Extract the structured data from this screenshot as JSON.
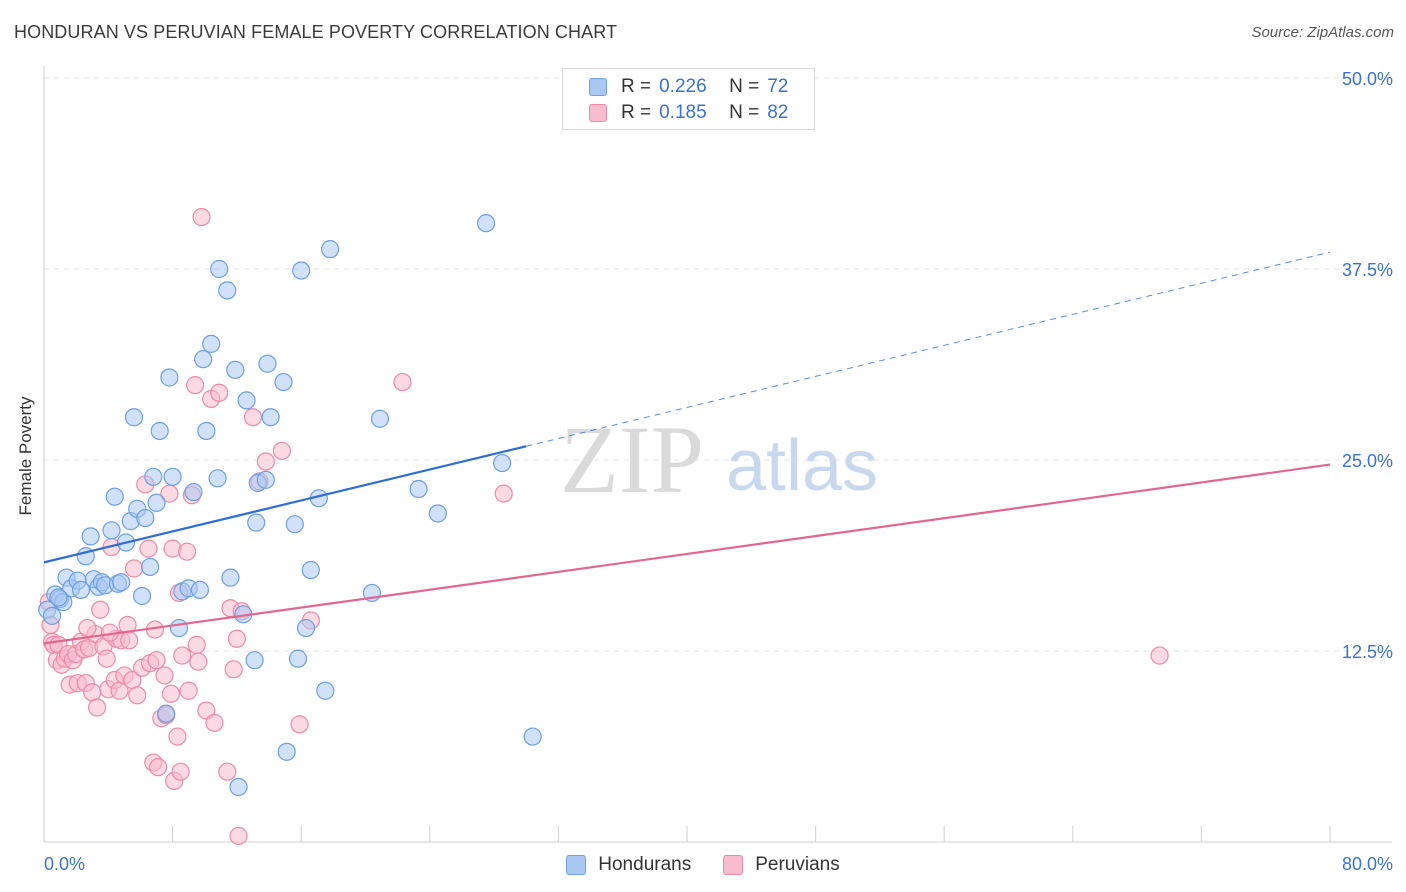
{
  "title": "HONDURAN VS PERUVIAN FEMALE POVERTY CORRELATION CHART",
  "source": "Source: ZipAtlas.com",
  "watermark": {
    "zip": "ZIP",
    "atlas": "atlas"
  },
  "colors": {
    "blue_fill": "#a9c9f2",
    "blue_stroke": "#6d9fe0",
    "blue_line": "#2f6fd1",
    "pink_fill": "#f7bccd",
    "pink_stroke": "#ec8aa8",
    "pink_line": "#e2678f",
    "tick_text": "#3a73c9",
    "grid": "#e2e2e2"
  },
  "legend": {
    "rows": [
      {
        "series": "Hondurans",
        "r_label": "R =",
        "r_value": "0.226",
        "n_label": "N =",
        "n_value": "72"
      },
      {
        "series": "Peruvians",
        "r_label": "R =",
        "r_value": "0.185",
        "n_label": "N =",
        "n_value": "82"
      }
    ]
  },
  "bottom_legend": [
    "Hondurans",
    "Peruvians"
  ],
  "chart_data": {
    "type": "scatter",
    "title": "HONDURAN VS PERUVIAN FEMALE POVERTY CORRELATION CHART",
    "xlabel": "",
    "ylabel": "Female Poverty",
    "xlim": [
      0,
      80
    ],
    "ylim": [
      0,
      50
    ],
    "x_tick_labels": [
      "0.0%",
      "80.0%"
    ],
    "y_ticks": [
      12.5,
      25.0,
      37.5,
      50.0
    ],
    "y_tick_labels": [
      "12.5%",
      "25.0%",
      "37.5%",
      "50.0%"
    ],
    "grid": true,
    "series": [
      {
        "name": "Hondurans",
        "trend": {
          "x0": 0,
          "y0": 18.3,
          "x1": 30,
          "y1": 25.9,
          "dash_to_x": 80,
          "dash_to_y": 38.6
        },
        "points": [
          [
            0.2,
            15.2
          ],
          [
            0.5,
            14.8
          ],
          [
            0.7,
            16.2
          ],
          [
            1.0,
            15.9
          ],
          [
            1.2,
            15.7
          ],
          [
            1.4,
            17.3
          ],
          [
            1.7,
            16.6
          ],
          [
            2.1,
            17.1
          ],
          [
            2.6,
            18.7
          ],
          [
            2.9,
            20.0
          ],
          [
            3.1,
            17.2
          ],
          [
            3.4,
            16.7
          ],
          [
            3.6,
            17.0
          ],
          [
            3.8,
            16.8
          ],
          [
            4.2,
            20.4
          ],
          [
            4.4,
            22.6
          ],
          [
            4.6,
            16.9
          ],
          [
            4.8,
            17.0
          ],
          [
            5.1,
            19.6
          ],
          [
            5.4,
            21.0
          ],
          [
            5.6,
            27.8
          ],
          [
            5.8,
            21.8
          ],
          [
            6.1,
            16.1
          ],
          [
            6.3,
            21.2
          ],
          [
            6.6,
            18.0
          ],
          [
            6.8,
            23.9
          ],
          [
            7.0,
            22.2
          ],
          [
            7.2,
            26.9
          ],
          [
            7.6,
            8.4
          ],
          [
            7.8,
            30.4
          ],
          [
            8.0,
            23.9
          ],
          [
            8.4,
            14.0
          ],
          [
            8.6,
            16.4
          ],
          [
            9.0,
            16.6
          ],
          [
            9.3,
            22.9
          ],
          [
            9.7,
            16.5
          ],
          [
            9.9,
            31.6
          ],
          [
            10.1,
            26.9
          ],
          [
            10.4,
            32.6
          ],
          [
            10.8,
            23.8
          ],
          [
            10.9,
            37.5
          ],
          [
            11.4,
            36.1
          ],
          [
            11.6,
            17.3
          ],
          [
            11.9,
            30.9
          ],
          [
            12.1,
            3.6
          ],
          [
            12.4,
            14.9
          ],
          [
            12.6,
            28.9
          ],
          [
            13.1,
            11.9
          ],
          [
            13.2,
            20.9
          ],
          [
            13.3,
            23.5
          ],
          [
            13.8,
            23.7
          ],
          [
            13.9,
            31.3
          ],
          [
            14.1,
            27.8
          ],
          [
            14.9,
            30.1
          ],
          [
            15.1,
            5.9
          ],
          [
            15.6,
            20.8
          ],
          [
            15.8,
            12.0
          ],
          [
            16.0,
            37.4
          ],
          [
            16.3,
            14.0
          ],
          [
            16.6,
            17.8
          ],
          [
            17.1,
            22.5
          ],
          [
            17.5,
            9.9
          ],
          [
            17.8,
            38.8
          ],
          [
            20.4,
            16.3
          ],
          [
            20.9,
            27.7
          ],
          [
            23.3,
            23.1
          ],
          [
            24.5,
            21.5
          ],
          [
            27.5,
            40.5
          ],
          [
            28.5,
            24.8
          ],
          [
            30.4,
            6.9
          ],
          [
            2.3,
            16.5
          ],
          [
            0.9,
            16.0
          ]
        ]
      },
      {
        "name": "Peruvians",
        "trend": {
          "x0": 0,
          "y0": 13.0,
          "x1": 80,
          "y1": 24.7
        },
        "points": [
          [
            0.3,
            15.7
          ],
          [
            0.5,
            13.1
          ],
          [
            0.6,
            12.9
          ],
          [
            0.8,
            11.9
          ],
          [
            0.9,
            12.9
          ],
          [
            1.1,
            11.6
          ],
          [
            1.3,
            12.0
          ],
          [
            1.5,
            12.3
          ],
          [
            1.6,
            10.3
          ],
          [
            1.8,
            11.9
          ],
          [
            2.0,
            12.3
          ],
          [
            2.1,
            10.4
          ],
          [
            2.3,
            13.1
          ],
          [
            2.5,
            12.6
          ],
          [
            2.6,
            10.4
          ],
          [
            2.8,
            12.7
          ],
          [
            3.0,
            9.8
          ],
          [
            3.2,
            13.6
          ],
          [
            3.3,
            8.8
          ],
          [
            3.5,
            15.2
          ],
          [
            3.7,
            12.8
          ],
          [
            3.9,
            12.0
          ],
          [
            4.0,
            10.0
          ],
          [
            4.2,
            19.3
          ],
          [
            4.4,
            10.6
          ],
          [
            4.5,
            13.3
          ],
          [
            4.7,
            9.9
          ],
          [
            4.8,
            13.2
          ],
          [
            5.0,
            10.9
          ],
          [
            5.2,
            14.2
          ],
          [
            5.3,
            13.2
          ],
          [
            5.5,
            10.6
          ],
          [
            5.6,
            17.9
          ],
          [
            5.8,
            9.6
          ],
          [
            6.1,
            11.4
          ],
          [
            6.3,
            23.4
          ],
          [
            6.5,
            19.2
          ],
          [
            6.6,
            11.7
          ],
          [
            6.8,
            5.2
          ],
          [
            6.9,
            13.9
          ],
          [
            7.0,
            11.9
          ],
          [
            7.1,
            4.9
          ],
          [
            7.3,
            8.1
          ],
          [
            7.5,
            10.9
          ],
          [
            7.6,
            8.3
          ],
          [
            7.8,
            22.8
          ],
          [
            7.9,
            9.7
          ],
          [
            8.0,
            19.2
          ],
          [
            8.1,
            4.0
          ],
          [
            8.3,
            6.9
          ],
          [
            8.4,
            16.3
          ],
          [
            8.5,
            4.6
          ],
          [
            8.6,
            12.2
          ],
          [
            8.9,
            19.0
          ],
          [
            9.2,
            22.7
          ],
          [
            9.4,
            29.9
          ],
          [
            9.5,
            12.9
          ],
          [
            9.6,
            11.8
          ],
          [
            9.8,
            40.9
          ],
          [
            10.1,
            8.6
          ],
          [
            10.4,
            29.0
          ],
          [
            10.6,
            7.8
          ],
          [
            10.9,
            29.4
          ],
          [
            11.4,
            4.6
          ],
          [
            11.6,
            15.3
          ],
          [
            11.8,
            11.3
          ],
          [
            12.0,
            13.3
          ],
          [
            12.1,
            0.4
          ],
          [
            12.3,
            15.1
          ],
          [
            13.0,
            27.8
          ],
          [
            13.4,
            23.6
          ],
          [
            14.8,
            25.6
          ],
          [
            15.9,
            7.7
          ],
          [
            16.6,
            14.5
          ],
          [
            22.3,
            30.1
          ],
          [
            28.6,
            22.8
          ],
          [
            69.4,
            12.2
          ],
          [
            0.4,
            14.2
          ],
          [
            2.7,
            14.0
          ],
          [
            4.1,
            13.7
          ],
          [
            9.0,
            9.9
          ],
          [
            13.8,
            24.9
          ]
        ]
      }
    ]
  }
}
